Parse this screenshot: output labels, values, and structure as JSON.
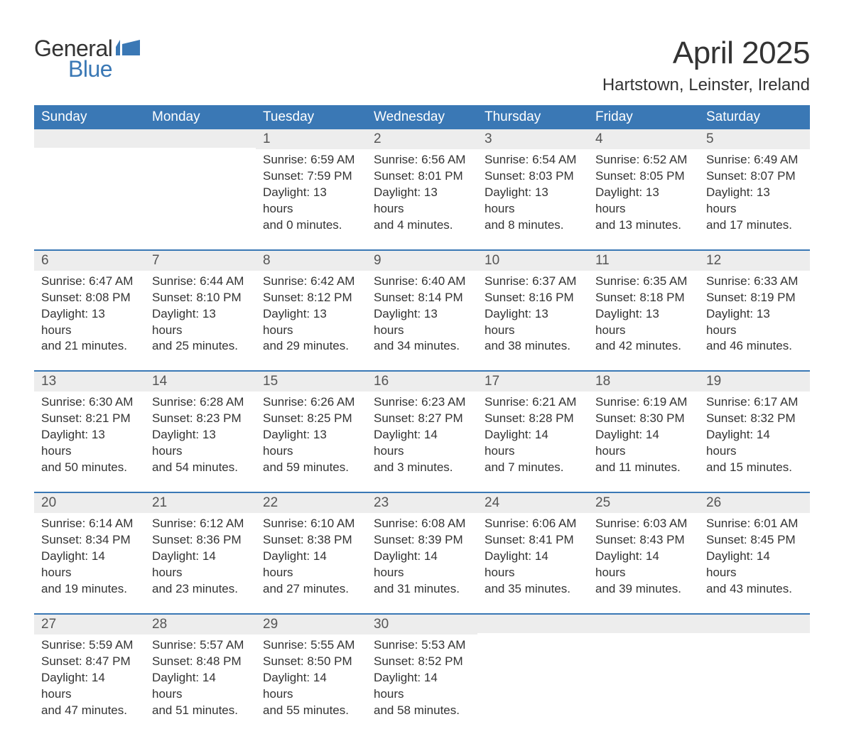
{
  "brand": {
    "name_part1": "General",
    "name_part2": "Blue",
    "logo_fill": "#3a78b5",
    "text_color_1": "#333333",
    "text_color_2": "#3a78b5"
  },
  "title": "April 2025",
  "location": "Hartstown, Leinster, Ireland",
  "colors": {
    "header_bg": "#3a78b5",
    "header_text": "#ffffff",
    "daynum_bg": "#ededed",
    "week_border": "#3a78b5",
    "body_text": "#333333",
    "page_bg": "#ffffff"
  },
  "fonts": {
    "family": "Arial",
    "month_title_pt": 33,
    "location_pt": 18,
    "weekday_pt": 14,
    "daynum_pt": 14,
    "body_pt": 13
  },
  "weekdays": [
    "Sunday",
    "Monday",
    "Tuesday",
    "Wednesday",
    "Thursday",
    "Friday",
    "Saturday"
  ],
  "weeks": [
    [
      null,
      null,
      {
        "n": "1",
        "sunrise": "Sunrise: 6:59 AM",
        "sunset": "Sunset: 7:59 PM",
        "dl1": "Daylight: 13 hours",
        "dl2": "and 0 minutes."
      },
      {
        "n": "2",
        "sunrise": "Sunrise: 6:56 AM",
        "sunset": "Sunset: 8:01 PM",
        "dl1": "Daylight: 13 hours",
        "dl2": "and 4 minutes."
      },
      {
        "n": "3",
        "sunrise": "Sunrise: 6:54 AM",
        "sunset": "Sunset: 8:03 PM",
        "dl1": "Daylight: 13 hours",
        "dl2": "and 8 minutes."
      },
      {
        "n": "4",
        "sunrise": "Sunrise: 6:52 AM",
        "sunset": "Sunset: 8:05 PM",
        "dl1": "Daylight: 13 hours",
        "dl2": "and 13 minutes."
      },
      {
        "n": "5",
        "sunrise": "Sunrise: 6:49 AM",
        "sunset": "Sunset: 8:07 PM",
        "dl1": "Daylight: 13 hours",
        "dl2": "and 17 minutes."
      }
    ],
    [
      {
        "n": "6",
        "sunrise": "Sunrise: 6:47 AM",
        "sunset": "Sunset: 8:08 PM",
        "dl1": "Daylight: 13 hours",
        "dl2": "and 21 minutes."
      },
      {
        "n": "7",
        "sunrise": "Sunrise: 6:44 AM",
        "sunset": "Sunset: 8:10 PM",
        "dl1": "Daylight: 13 hours",
        "dl2": "and 25 minutes."
      },
      {
        "n": "8",
        "sunrise": "Sunrise: 6:42 AM",
        "sunset": "Sunset: 8:12 PM",
        "dl1": "Daylight: 13 hours",
        "dl2": "and 29 minutes."
      },
      {
        "n": "9",
        "sunrise": "Sunrise: 6:40 AM",
        "sunset": "Sunset: 8:14 PM",
        "dl1": "Daylight: 13 hours",
        "dl2": "and 34 minutes."
      },
      {
        "n": "10",
        "sunrise": "Sunrise: 6:37 AM",
        "sunset": "Sunset: 8:16 PM",
        "dl1": "Daylight: 13 hours",
        "dl2": "and 38 minutes."
      },
      {
        "n": "11",
        "sunrise": "Sunrise: 6:35 AM",
        "sunset": "Sunset: 8:18 PM",
        "dl1": "Daylight: 13 hours",
        "dl2": "and 42 minutes."
      },
      {
        "n": "12",
        "sunrise": "Sunrise: 6:33 AM",
        "sunset": "Sunset: 8:19 PM",
        "dl1": "Daylight: 13 hours",
        "dl2": "and 46 minutes."
      }
    ],
    [
      {
        "n": "13",
        "sunrise": "Sunrise: 6:30 AM",
        "sunset": "Sunset: 8:21 PM",
        "dl1": "Daylight: 13 hours",
        "dl2": "and 50 minutes."
      },
      {
        "n": "14",
        "sunrise": "Sunrise: 6:28 AM",
        "sunset": "Sunset: 8:23 PM",
        "dl1": "Daylight: 13 hours",
        "dl2": "and 54 minutes."
      },
      {
        "n": "15",
        "sunrise": "Sunrise: 6:26 AM",
        "sunset": "Sunset: 8:25 PM",
        "dl1": "Daylight: 13 hours",
        "dl2": "and 59 minutes."
      },
      {
        "n": "16",
        "sunrise": "Sunrise: 6:23 AM",
        "sunset": "Sunset: 8:27 PM",
        "dl1": "Daylight: 14 hours",
        "dl2": "and 3 minutes."
      },
      {
        "n": "17",
        "sunrise": "Sunrise: 6:21 AM",
        "sunset": "Sunset: 8:28 PM",
        "dl1": "Daylight: 14 hours",
        "dl2": "and 7 minutes."
      },
      {
        "n": "18",
        "sunrise": "Sunrise: 6:19 AM",
        "sunset": "Sunset: 8:30 PM",
        "dl1": "Daylight: 14 hours",
        "dl2": "and 11 minutes."
      },
      {
        "n": "19",
        "sunrise": "Sunrise: 6:17 AM",
        "sunset": "Sunset: 8:32 PM",
        "dl1": "Daylight: 14 hours",
        "dl2": "and 15 minutes."
      }
    ],
    [
      {
        "n": "20",
        "sunrise": "Sunrise: 6:14 AM",
        "sunset": "Sunset: 8:34 PM",
        "dl1": "Daylight: 14 hours",
        "dl2": "and 19 minutes."
      },
      {
        "n": "21",
        "sunrise": "Sunrise: 6:12 AM",
        "sunset": "Sunset: 8:36 PM",
        "dl1": "Daylight: 14 hours",
        "dl2": "and 23 minutes."
      },
      {
        "n": "22",
        "sunrise": "Sunrise: 6:10 AM",
        "sunset": "Sunset: 8:38 PM",
        "dl1": "Daylight: 14 hours",
        "dl2": "and 27 minutes."
      },
      {
        "n": "23",
        "sunrise": "Sunrise: 6:08 AM",
        "sunset": "Sunset: 8:39 PM",
        "dl1": "Daylight: 14 hours",
        "dl2": "and 31 minutes."
      },
      {
        "n": "24",
        "sunrise": "Sunrise: 6:06 AM",
        "sunset": "Sunset: 8:41 PM",
        "dl1": "Daylight: 14 hours",
        "dl2": "and 35 minutes."
      },
      {
        "n": "25",
        "sunrise": "Sunrise: 6:03 AM",
        "sunset": "Sunset: 8:43 PM",
        "dl1": "Daylight: 14 hours",
        "dl2": "and 39 minutes."
      },
      {
        "n": "26",
        "sunrise": "Sunrise: 6:01 AM",
        "sunset": "Sunset: 8:45 PM",
        "dl1": "Daylight: 14 hours",
        "dl2": "and 43 minutes."
      }
    ],
    [
      {
        "n": "27",
        "sunrise": "Sunrise: 5:59 AM",
        "sunset": "Sunset: 8:47 PM",
        "dl1": "Daylight: 14 hours",
        "dl2": "and 47 minutes."
      },
      {
        "n": "28",
        "sunrise": "Sunrise: 5:57 AM",
        "sunset": "Sunset: 8:48 PM",
        "dl1": "Daylight: 14 hours",
        "dl2": "and 51 minutes."
      },
      {
        "n": "29",
        "sunrise": "Sunrise: 5:55 AM",
        "sunset": "Sunset: 8:50 PM",
        "dl1": "Daylight: 14 hours",
        "dl2": "and 55 minutes."
      },
      {
        "n": "30",
        "sunrise": "Sunrise: 5:53 AM",
        "sunset": "Sunset: 8:52 PM",
        "dl1": "Daylight: 14 hours",
        "dl2": "and 58 minutes."
      },
      null,
      null,
      null
    ]
  ]
}
